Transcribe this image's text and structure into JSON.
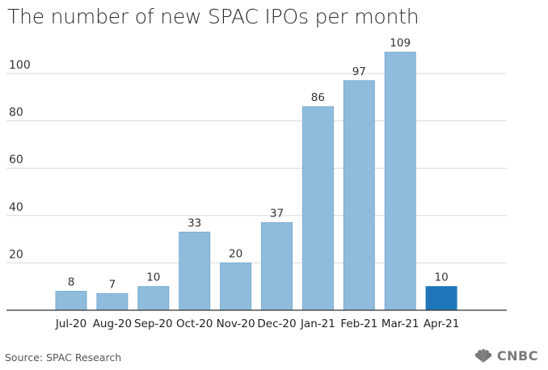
{
  "title": "The number of new SPAC IPOs per month",
  "source": "Source: SPAC Research",
  "logo_text": "CNBC",
  "colors": {
    "bar": "#8fbcdc",
    "bar_stroke": "#7aaed3",
    "highlight": "#1f77b9",
    "grid": "#d9d9d9",
    "axis": "#333333"
  },
  "chart_data": {
    "type": "bar",
    "categories": [
      "Jul-20",
      "Aug-20",
      "Sep-20",
      "Oct-20",
      "Nov-20",
      "Dec-20",
      "Jan-21",
      "Feb-21",
      "Mar-21",
      "Apr-21"
    ],
    "values": [
      8,
      7,
      10,
      33,
      20,
      37,
      86,
      97,
      109,
      10
    ],
    "highlight_index": 9,
    "yticks": [
      20,
      40,
      60,
      80,
      100
    ],
    "ylim": [
      0,
      115
    ],
    "grid": true,
    "title": "The number of new SPAC IPOs per month",
    "xlabel": "",
    "ylabel": ""
  }
}
